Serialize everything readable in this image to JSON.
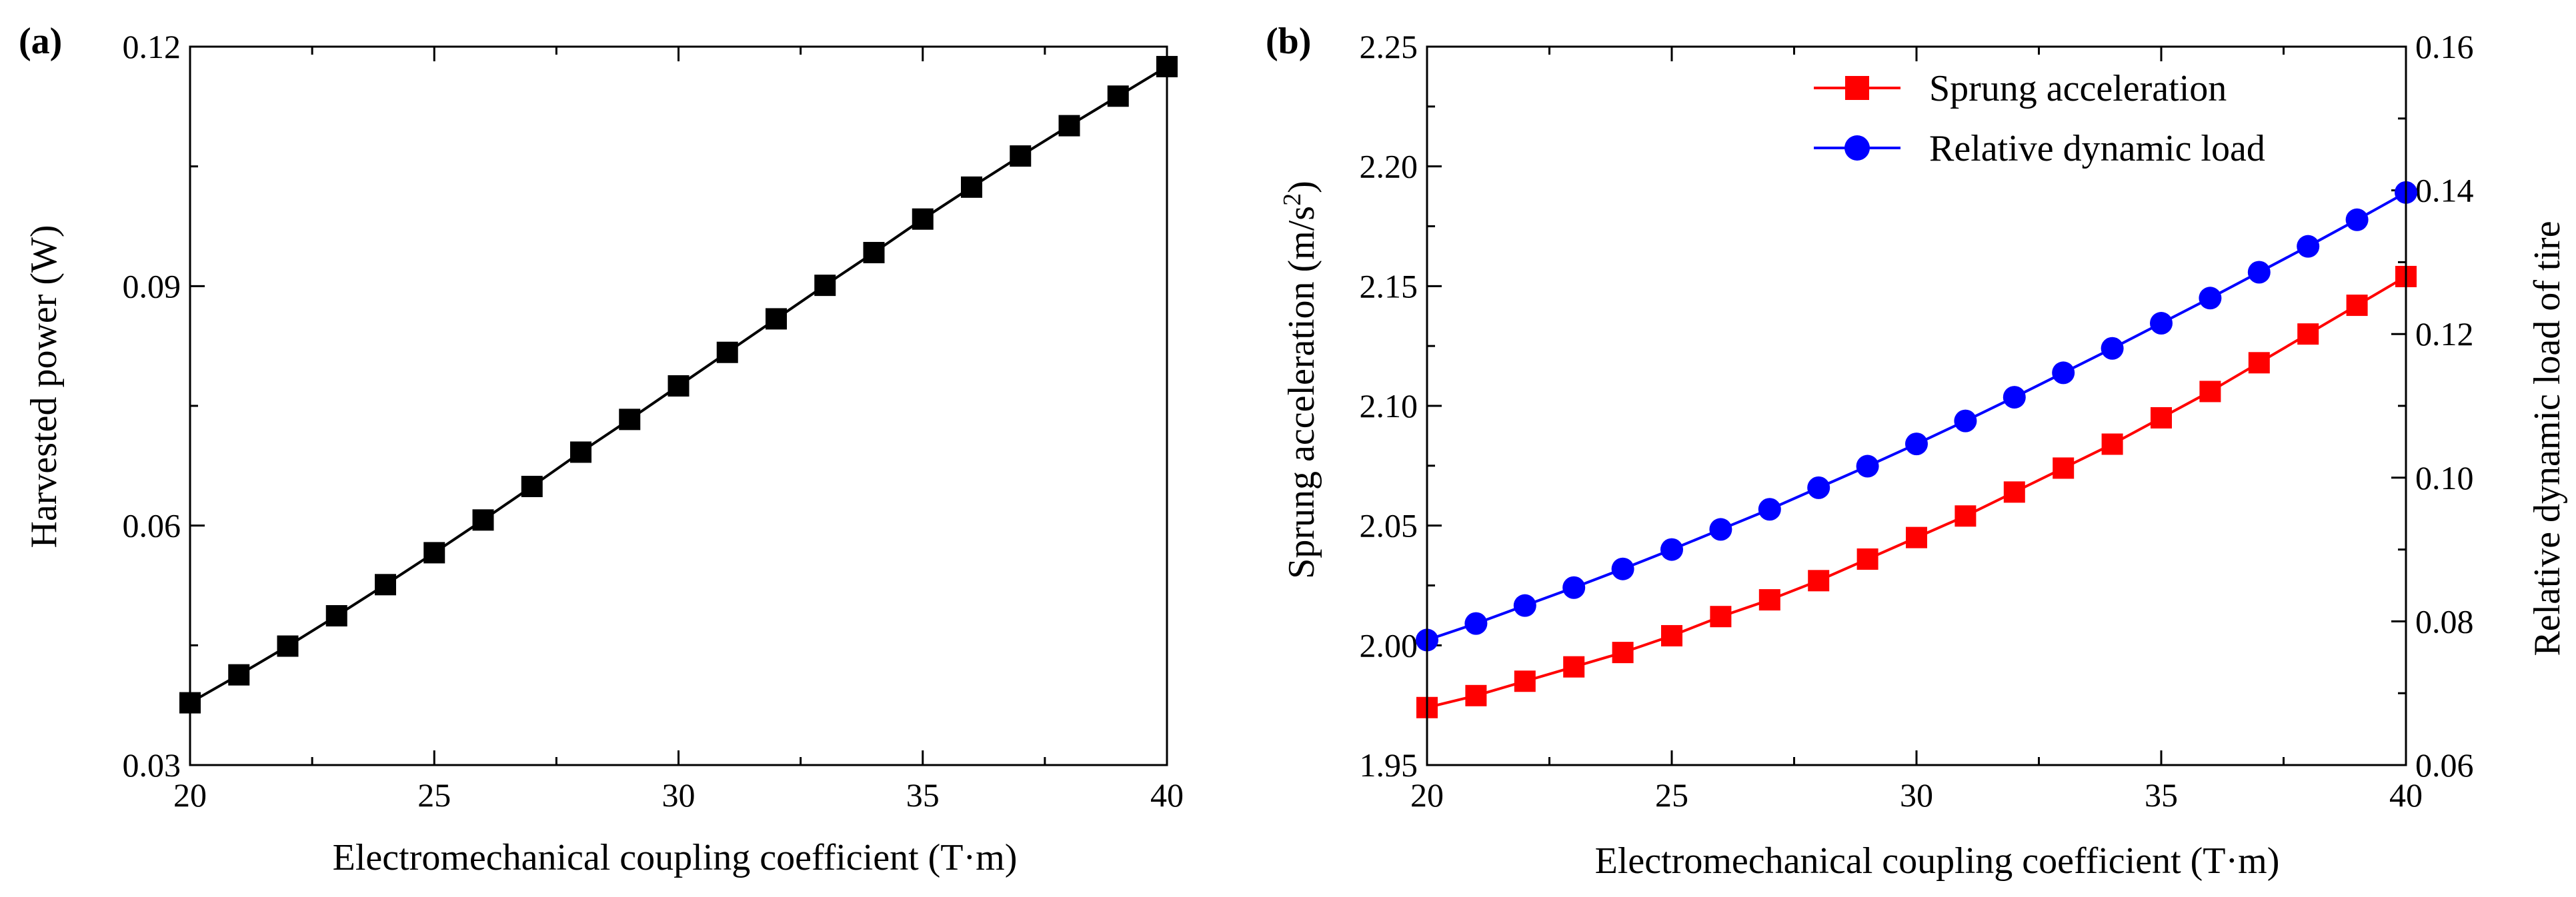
{
  "chart_data": [
    {
      "type": "line",
      "panel_label": "(a)",
      "xlabel": "Electromechanical coupling coefficient (T·m)",
      "ylabel": "Harvested power (W)",
      "xlim": [
        20,
        40
      ],
      "ylim": [
        0.03,
        0.12
      ],
      "xticks": [
        "20",
        "25",
        "30",
        "35",
        "40"
      ],
      "yticks": [
        "0.03",
        "0.06",
        "0.09",
        "0.12"
      ],
      "grid": false,
      "series": [
        {
          "color": "#000000",
          "marker": "square",
          "x": [
            20,
            21,
            22,
            23,
            24,
            25,
            26,
            27,
            28,
            29,
            30,
            31,
            32,
            33,
            34,
            35,
            36,
            37,
            38,
            39,
            40
          ],
          "y": [
            0.0378,
            0.0413,
            0.0449,
            0.0487,
            0.0526,
            0.0566,
            0.0607,
            0.0649,
            0.0692,
            0.0733,
            0.0775,
            0.0817,
            0.0859,
            0.0901,
            0.0942,
            0.0984,
            0.1024,
            0.1063,
            0.1101,
            0.1138,
            0.1175
          ]
        }
      ]
    },
    {
      "type": "line",
      "panel_label": "(b)",
      "xlabel": "Electromechanical coupling coefficient (T·m)",
      "ylabel_left_main": "Sprung acceleration (m/s",
      "ylabel_left_sup": "2",
      "ylabel_left_end": ")",
      "ylabel_right": "Relative dynamic load of tire",
      "xlim": [
        20,
        40
      ],
      "ylim_left": [
        1.95,
        2.25
      ],
      "ylim_right": [
        0.06,
        0.16
      ],
      "xticks": [
        "20",
        "25",
        "30",
        "35",
        "40"
      ],
      "yticks_left": [
        "1.95",
        "2.00",
        "2.05",
        "2.10",
        "2.15",
        "2.20",
        "2.25"
      ],
      "yticks_right": [
        "0.06",
        "0.08",
        "0.10",
        "0.12",
        "0.14",
        "0.16"
      ],
      "legend_position": "top-right",
      "grid": false,
      "series": [
        {
          "name": "Sprung acceleration",
          "axis": "left",
          "color": "#ff0000",
          "marker": "square",
          "x": [
            20,
            21,
            22,
            23,
            24,
            25,
            26,
            27,
            28,
            29,
            30,
            31,
            32,
            33,
            34,
            35,
            36,
            37,
            38,
            39,
            40
          ],
          "y": [
            1.974,
            1.979,
            1.985,
            1.991,
            1.997,
            2.004,
            2.012,
            2.019,
            2.027,
            2.036,
            2.045,
            2.054,
            2.064,
            2.074,
            2.084,
            2.095,
            2.106,
            2.118,
            2.13,
            2.142,
            2.154
          ]
        },
        {
          "name": "Relative dynamic load",
          "axis": "right",
          "color": "#0000ff",
          "marker": "circle",
          "x": [
            20,
            21,
            22,
            23,
            24,
            25,
            26,
            27,
            28,
            29,
            30,
            31,
            32,
            33,
            34,
            35,
            36,
            37,
            38,
            39,
            40
          ],
          "y": [
            0.0774,
            0.0797,
            0.0822,
            0.0847,
            0.0873,
            0.09,
            0.0928,
            0.0956,
            0.0986,
            0.1016,
            0.1047,
            0.1079,
            0.1112,
            0.1146,
            0.118,
            0.1215,
            0.125,
            0.1286,
            0.1322,
            0.1359,
            0.1397
          ]
        }
      ]
    }
  ]
}
